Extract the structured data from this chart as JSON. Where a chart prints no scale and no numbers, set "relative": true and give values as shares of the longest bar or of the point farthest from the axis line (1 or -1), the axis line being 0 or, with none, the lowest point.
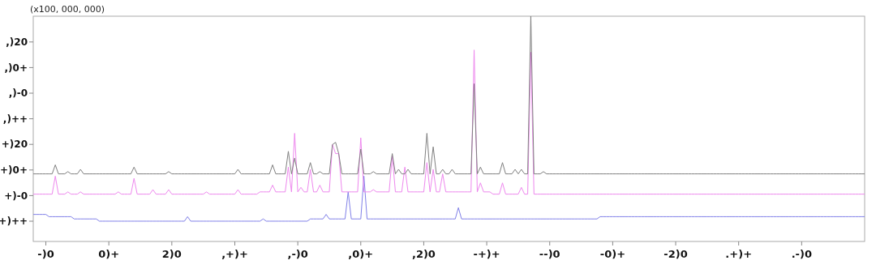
{
  "chart_data": {
    "type": "line",
    "relative": true,
    "ylabel": "(x100, 000, 000)",
    "annotations": [
      "+)++",
      "+)-0",
      "+)0+",
      "+)20",
      ",)++",
      ",)-0",
      ",)0+",
      ",)20"
    ],
    "marker": "none",
    "line_style": "solid",
    "categories": [
      null,
      null,
      null,
      null,
      "-)0",
      null,
      null,
      null,
      null,
      null,
      null,
      null,
      null,
      null,
      null,
      null,
      null,
      null,
      null,
      null,
      null,
      null,
      null,
      null,
      "0)+",
      null,
      null,
      null,
      null,
      null,
      null,
      null,
      null,
      null,
      null,
      null,
      null,
      null,
      null,
      null,
      null,
      null,
      null,
      null,
      "2)0",
      null,
      null,
      null,
      null,
      null,
      null,
      null,
      null,
      null,
      null,
      null,
      null,
      null,
      null,
      null,
      null,
      null,
      null,
      null,
      ",+)+",
      null,
      null,
      null,
      null,
      null,
      null,
      null,
      null,
      null,
      null,
      null,
      null,
      null,
      null,
      null,
      null,
      null,
      null,
      null,
      ",-)0",
      null,
      null,
      null,
      null,
      null,
      null,
      null,
      null,
      null,
      null,
      null,
      null,
      null,
      null,
      null,
      null,
      null,
      null,
      null,
      ",0)+",
      null,
      null,
      null,
      null,
      null,
      null,
      null,
      null,
      null,
      null,
      null,
      null,
      null,
      null,
      null,
      null,
      null,
      null,
      null,
      ",2)0",
      null,
      null,
      null,
      null,
      null,
      null,
      null,
      null,
      null,
      null,
      null,
      null,
      null,
      null,
      null,
      null,
      null,
      null,
      null,
      "-+)+",
      null,
      null,
      null,
      null,
      null,
      null,
      null,
      null,
      null,
      null,
      null,
      null,
      null,
      null,
      null,
      null,
      null,
      null,
      null,
      "--)0",
      null,
      null,
      null,
      null,
      null,
      null,
      null,
      null,
      null,
      null,
      null,
      null,
      null,
      null,
      null,
      null,
      null,
      null,
      null,
      "-0)+",
      null,
      null,
      null,
      null,
      null,
      null,
      null,
      null,
      null,
      null,
      null,
      null,
      null,
      null,
      null,
      null,
      null,
      null,
      null,
      "-2)0",
      null,
      null,
      null,
      null,
      null,
      null,
      null,
      null,
      null,
      null,
      null,
      null,
      null,
      null,
      null,
      null,
      null,
      null,
      null,
      ".+)+",
      null,
      null,
      null,
      null,
      null,
      null,
      null,
      null,
      null,
      null,
      null,
      null,
      null,
      null,
      null,
      null,
      null,
      null,
      null,
      ".-)0",
      null,
      null,
      null,
      null,
      null,
      null,
      null,
      null,
      null,
      null,
      null,
      null,
      null,
      null,
      null,
      null,
      null,
      null,
      null,
      null
    ],
    "series": [
      {
        "color": "#8080e8",
        "values": [
          0.12,
          0.12,
          0.12,
          0.12,
          0.12,
          0.11,
          0.11,
          0.11,
          0.11,
          0.11,
          0.11,
          0.11,
          0.11,
          0.1,
          0.1,
          0.1,
          0.1,
          0.1,
          0.1,
          0.1,
          0.1,
          0.09,
          0.09,
          0.09,
          0.09,
          0.09,
          0.09,
          0.09,
          0.09,
          0.09,
          0.09,
          0.09,
          0.09,
          0.09,
          0.09,
          0.09,
          0.09,
          0.09,
          0.09,
          0.09,
          0.09,
          0.09,
          0.09,
          0.09,
          0.09,
          0.09,
          0.09,
          0.09,
          0.09,
          0.11,
          0.09,
          0.09,
          0.09,
          0.09,
          0.09,
          0.09,
          0.09,
          0.09,
          0.09,
          0.09,
          0.09,
          0.09,
          0.09,
          0.09,
          0.09,
          0.09,
          0.09,
          0.09,
          0.09,
          0.09,
          0.09,
          0.09,
          0.09,
          0.1,
          0.09,
          0.09,
          0.09,
          0.09,
          0.09,
          0.09,
          0.09,
          0.09,
          0.09,
          0.09,
          0.09,
          0.09,
          0.09,
          0.09,
          0.1,
          0.1,
          0.1,
          0.1,
          0.1,
          0.12,
          0.1,
          0.1,
          0.1,
          0.1,
          0.1,
          0.1,
          0.22,
          0.1,
          0.1,
          0.1,
          0.1,
          0.29,
          0.1,
          0.1,
          0.1,
          0.1,
          0.1,
          0.1,
          0.1,
          0.1,
          0.1,
          0.1,
          0.1,
          0.1,
          0.1,
          0.1,
          0.1,
          0.1,
          0.1,
          0.1,
          0.1,
          0.1,
          0.1,
          0.1,
          0.1,
          0.1,
          0.1,
          0.1,
          0.1,
          0.1,
          0.1,
          0.15,
          0.1,
          0.1,
          0.1,
          0.1,
          0.1,
          0.1,
          0.1,
          0.1,
          0.1,
          0.1,
          0.1,
          0.1,
          0.1,
          0.1,
          0.1,
          0.1,
          0.1,
          0.1,
          0.1,
          0.1,
          0.1,
          0.1,
          0.1,
          0.1,
          0.1,
          0.1,
          0.1,
          0.1,
          0.1,
          0.1,
          0.1,
          0.1,
          0.1,
          0.1,
          0.1,
          0.1,
          0.1,
          0.1,
          0.1,
          0.1,
          0.1,
          0.1,
          0.1,
          0.1,
          0.11,
          0.11,
          0.11,
          0.11,
          0.11,
          0.11,
          0.11,
          0.11,
          0.11,
          0.11,
          0.11,
          0.11,
          0.11,
          0.11,
          0.11,
          0.11,
          0.11,
          0.11,
          0.11,
          0.11,
          0.11,
          0.11,
          0.11,
          0.11,
          0.11,
          0.11,
          0.11,
          0.11,
          0.11,
          0.11,
          0.11,
          0.11,
          0.11,
          0.11,
          0.11,
          0.11,
          0.11,
          0.11,
          0.11,
          0.11,
          0.11,
          0.11,
          0.11,
          0.11,
          0.11,
          0.11,
          0.11,
          0.11,
          0.11,
          0.11,
          0.11,
          0.11,
          0.11,
          0.11,
          0.11,
          0.11,
          0.11,
          0.11,
          0.11,
          0.11,
          0.11,
          0.11,
          0.11,
          0.11,
          0.11,
          0.11,
          0.11,
          0.11,
          0.11,
          0.11,
          0.11,
          0.11,
          0.11,
          0.11,
          0.11,
          0.11,
          0.11,
          0.11,
          0.11,
          0.11,
          0.11,
          0.11,
          0.11,
          0.11,
          0.11
        ]
      },
      {
        "color": "#ee88ee",
        "values": [
          0.21,
          0.21,
          0.21,
          0.21,
          0.21,
          0.21,
          0.21,
          0.29,
          0.21,
          0.21,
          0.21,
          0.22,
          0.21,
          0.21,
          0.21,
          0.22,
          0.21,
          0.21,
          0.21,
          0.21,
          0.21,
          0.21,
          0.21,
          0.21,
          0.21,
          0.21,
          0.21,
          0.22,
          0.21,
          0.21,
          0.21,
          0.21,
          0.28,
          0.21,
          0.21,
          0.21,
          0.21,
          0.21,
          0.23,
          0.21,
          0.21,
          0.21,
          0.21,
          0.23,
          0.21,
          0.21,
          0.21,
          0.21,
          0.21,
          0.21,
          0.21,
          0.21,
          0.21,
          0.21,
          0.21,
          0.22,
          0.21,
          0.21,
          0.21,
          0.21,
          0.21,
          0.21,
          0.21,
          0.21,
          0.21,
          0.23,
          0.21,
          0.21,
          0.21,
          0.21,
          0.21,
          0.21,
          0.22,
          0.22,
          0.22,
          0.22,
          0.25,
          0.22,
          0.22,
          0.22,
          0.22,
          0.33,
          0.22,
          0.48,
          0.22,
          0.24,
          0.22,
          0.22,
          0.32,
          0.22,
          0.22,
          0.25,
          0.22,
          0.22,
          0.22,
          0.43,
          0.39,
          0.39,
          0.22,
          0.22,
          0.22,
          0.22,
          0.22,
          0.22,
          0.46,
          0.22,
          0.22,
          0.22,
          0.23,
          0.22,
          0.22,
          0.22,
          0.22,
          0.22,
          0.38,
          0.22,
          0.22,
          0.22,
          0.33,
          0.22,
          0.22,
          0.22,
          0.22,
          0.22,
          0.22,
          0.35,
          0.22,
          0.32,
          0.22,
          0.22,
          0.3,
          0.22,
          0.22,
          0.22,
          0.22,
          0.22,
          0.22,
          0.22,
          0.22,
          0.22,
          0.85,
          0.22,
          0.26,
          0.22,
          0.22,
          0.22,
          0.21,
          0.21,
          0.21,
          0.26,
          0.21,
          0.21,
          0.21,
          0.21,
          0.21,
          0.24,
          0.21,
          0.21,
          0.84,
          0.21,
          0.21,
          0.21,
          0.21,
          0.21,
          0.21,
          0.21,
          0.21,
          0.21,
          0.21,
          0.21,
          0.21,
          0.21,
          0.21,
          0.21,
          0.21,
          0.21,
          0.21,
          0.21,
          0.21,
          0.21,
          0.21,
          0.21,
          0.21,
          0.21,
          0.21,
          0.21,
          0.21,
          0.21,
          0.21,
          0.21,
          0.21,
          0.21,
          0.21,
          0.21,
          0.21,
          0.21,
          0.21,
          0.21,
          0.21,
          0.21,
          0.21,
          0.21,
          0.21,
          0.21,
          0.21,
          0.21,
          0.21,
          0.21,
          0.21,
          0.21,
          0.21,
          0.21,
          0.21,
          0.21,
          0.21,
          0.21,
          0.21,
          0.21,
          0.21,
          0.21,
          0.21,
          0.21,
          0.21,
          0.21,
          0.21,
          0.21,
          0.21,
          0.21,
          0.21,
          0.21,
          0.21,
          0.21,
          0.21,
          0.21,
          0.21,
          0.21,
          0.21,
          0.21,
          0.21,
          0.21,
          0.21,
          0.21,
          0.21,
          0.21,
          0.21,
          0.21,
          0.21,
          0.21,
          0.21,
          0.21,
          0.21,
          0.21,
          0.21,
          0.21,
          0.21,
          0.21,
          0.21,
          0.21,
          0.21,
          0.21,
          0.21,
          0.21,
          0.21,
          0.21,
          0.21
        ]
      },
      {
        "color": "#7f7f7f",
        "values": [
          0.3,
          0.3,
          0.3,
          0.3,
          0.3,
          0.3,
          0.3,
          0.34,
          0.3,
          0.3,
          0.3,
          0.31,
          0.3,
          0.3,
          0.3,
          0.32,
          0.3,
          0.3,
          0.3,
          0.3,
          0.3,
          0.3,
          0.3,
          0.3,
          0.3,
          0.3,
          0.3,
          0.3,
          0.3,
          0.3,
          0.3,
          0.3,
          0.33,
          0.3,
          0.3,
          0.3,
          0.3,
          0.3,
          0.3,
          0.3,
          0.3,
          0.3,
          0.3,
          0.31,
          0.3,
          0.3,
          0.3,
          0.3,
          0.3,
          0.3,
          0.3,
          0.3,
          0.3,
          0.3,
          0.3,
          0.3,
          0.3,
          0.3,
          0.3,
          0.3,
          0.3,
          0.3,
          0.3,
          0.3,
          0.3,
          0.32,
          0.3,
          0.3,
          0.3,
          0.3,
          0.3,
          0.3,
          0.3,
          0.3,
          0.3,
          0.3,
          0.34,
          0.3,
          0.3,
          0.3,
          0.3,
          0.4,
          0.3,
          0.37,
          0.3,
          0.3,
          0.3,
          0.3,
          0.35,
          0.3,
          0.3,
          0.31,
          0.3,
          0.3,
          0.3,
          0.43,
          0.44,
          0.39,
          0.3,
          0.3,
          0.3,
          0.3,
          0.3,
          0.3,
          0.41,
          0.3,
          0.3,
          0.3,
          0.31,
          0.3,
          0.3,
          0.3,
          0.3,
          0.3,
          0.39,
          0.3,
          0.32,
          0.3,
          0.3,
          0.32,
          0.3,
          0.3,
          0.3,
          0.3,
          0.3,
          0.48,
          0.3,
          0.42,
          0.3,
          0.3,
          0.32,
          0.3,
          0.3,
          0.32,
          0.3,
          0.3,
          0.3,
          0.3,
          0.3,
          0.3,
          0.7,
          0.3,
          0.33,
          0.3,
          0.3,
          0.3,
          0.3,
          0.3,
          0.3,
          0.35,
          0.3,
          0.3,
          0.3,
          0.32,
          0.3,
          0.32,
          0.3,
          0.3,
          1,
          0.3,
          0.3,
          0.3,
          0.31,
          0.3,
          0.3,
          0.3,
          0.3,
          0.3,
          0.3,
          0.3,
          0.3,
          0.3,
          0.3,
          0.3,
          0.3,
          0.3,
          0.3,
          0.3,
          0.3,
          0.3,
          0.3,
          0.3,
          0.3,
          0.3,
          0.3,
          0.3,
          0.3,
          0.3,
          0.3,
          0.3,
          0.3,
          0.3,
          0.3,
          0.3,
          0.3,
          0.3,
          0.3,
          0.3,
          0.3,
          0.3,
          0.3,
          0.3,
          0.3,
          0.3,
          0.3,
          0.3,
          0.3,
          0.3,
          0.3,
          0.3,
          0.3,
          0.3,
          0.3,
          0.3,
          0.3,
          0.3,
          0.3,
          0.3,
          0.3,
          0.3,
          0.3,
          0.3,
          0.3,
          0.3,
          0.3,
          0.3,
          0.3,
          0.3,
          0.3,
          0.3,
          0.3,
          0.3,
          0.3,
          0.3,
          0.3,
          0.3,
          0.3,
          0.3,
          0.3,
          0.3,
          0.3,
          0.3,
          0.3,
          0.3,
          0.3,
          0.3,
          0.3,
          0.3,
          0.3,
          0.3,
          0.3,
          0.3,
          0.3,
          0.3,
          0.3,
          0.3,
          0.3,
          0.3,
          0.3,
          0.3,
          0.3,
          0.3,
          0.3,
          0.3,
          0.3
        ]
      }
    ]
  }
}
